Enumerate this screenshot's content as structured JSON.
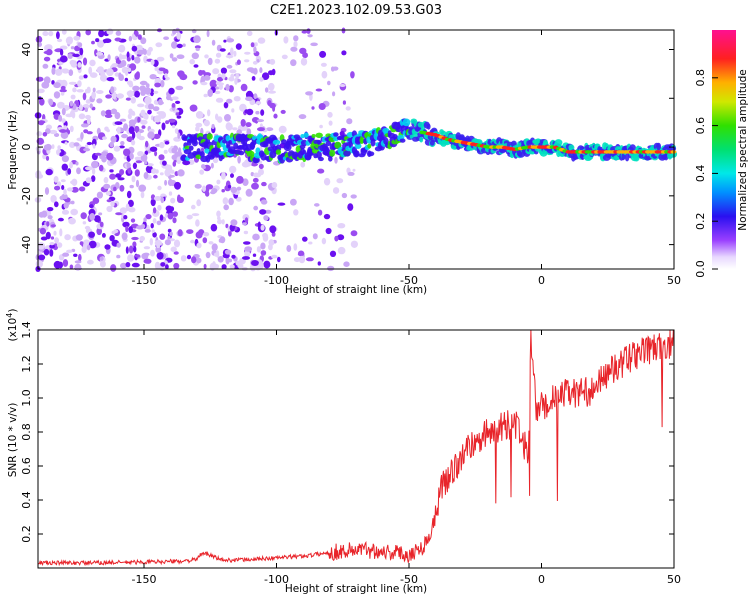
{
  "title": "C2E1.2023.102.09.53.G03",
  "chart_data": [
    {
      "type": "heatmap",
      "xlabel": "Height of straight line (km)",
      "ylabel": "Frequency (Hz)",
      "xlim": [
        -190,
        50
      ],
      "ylim": [
        -50,
        48
      ],
      "xticks": [
        "-150",
        "-100",
        "-50",
        "0",
        "50"
      ],
      "yticks": [
        "40",
        "20",
        "0",
        "-20",
        "-40"
      ],
      "ridge": {
        "x": [
          -135,
          -120,
          -100,
          -90,
          -80,
          -70,
          -60,
          -55,
          -50,
          -45,
          -40,
          -35,
          -30,
          -25,
          -20,
          -15,
          -10,
          -5,
          0,
          5,
          10,
          15,
          20,
          30,
          40,
          50
        ],
        "frequency": [
          0,
          0,
          -1,
          0,
          0,
          1,
          3,
          5,
          8,
          6,
          5,
          3,
          2,
          1,
          0,
          0,
          -1,
          0,
          0,
          0,
          -2,
          -2,
          -2,
          -2,
          -2,
          -2
        ]
      },
      "colorbar": {
        "label": "Normalized spectral amplitude",
        "ticks": [
          "0.0",
          "0.2",
          "0.4",
          "0.6",
          "0.8"
        ],
        "range": [
          0,
          1
        ]
      }
    },
    {
      "type": "line",
      "xlabel": "Height of straight line (km)",
      "ylabel": "SNR (10 * v/v)",
      "multiplier": "(x10",
      "multiplier_exp": "4",
      "multiplier_close": ")",
      "xlim": [
        -190,
        50
      ],
      "ylim": [
        0,
        14000
      ],
      "xticks": [
        "-150",
        "-100",
        "-50",
        "0",
        "50"
      ],
      "yticks": [
        "1.4",
        "1.2",
        "1.0",
        "0.8",
        "0.6",
        "0.4",
        "0.2"
      ],
      "color": "#e8242a",
      "x": [
        -190,
        -170,
        -150,
        -135,
        -130,
        -128,
        -120,
        -110,
        -100,
        -90,
        -80,
        -70,
        -60,
        -50,
        -45,
        -42,
        -40,
        -38,
        -35,
        -30,
        -25,
        -20,
        -15,
        -10,
        -7,
        -5,
        -4,
        -2,
        0,
        5,
        10,
        15,
        20,
        25,
        30,
        35,
        40,
        45,
        50
      ],
      "values": [
        300,
        300,
        350,
        400,
        500,
        900,
        450,
        500,
        600,
        700,
        900,
        1100,
        1000,
        800,
        1200,
        2000,
        3000,
        4500,
        5500,
        6500,
        7500,
        8000,
        8300,
        8500,
        7500,
        6500,
        13800,
        9000,
        9500,
        10000,
        10300,
        10300,
        10500,
        11500,
        12000,
        12500,
        12800,
        13000,
        13200
      ]
    }
  ]
}
